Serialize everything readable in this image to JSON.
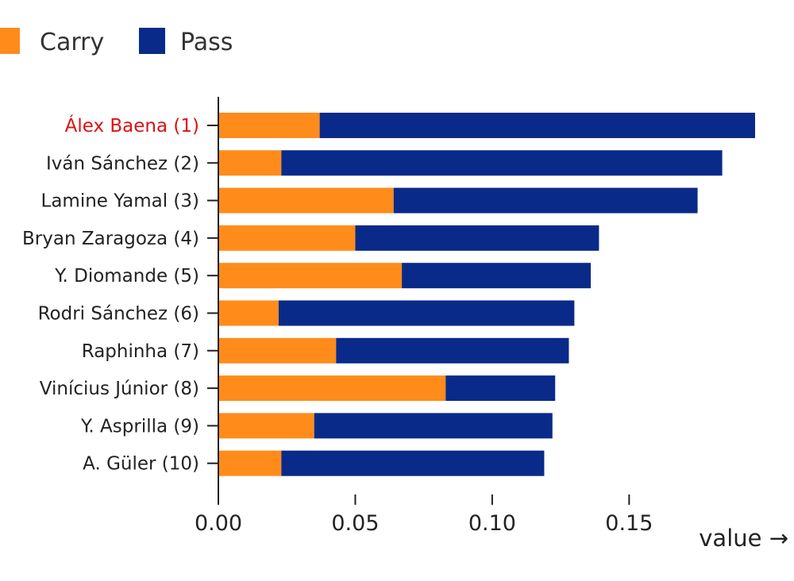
{
  "chart_data": {
    "type": "bar",
    "orientation": "horizontal",
    "stacked": true,
    "categories": [
      "Álex Baena (1)",
      "Iván Sánchez (2)",
      "Lamine Yamal (3)",
      "Bryan Zaragoza (4)",
      "Y. Diomande (5)",
      "Rodri Sánchez (6)",
      "Raphinha (7)",
      "Vinícius Júnior (8)",
      "Y. Asprilla (9)",
      "A. Güler (10)"
    ],
    "highlight_category": "Álex Baena (1)",
    "series": [
      {
        "name": "Carry",
        "color": "#ff8c1a",
        "values": [
          0.037,
          0.023,
          0.064,
          0.05,
          0.067,
          0.022,
          0.043,
          0.083,
          0.035,
          0.023
        ]
      },
      {
        "name": "Pass",
        "color": "#0a2a8a",
        "values": [
          0.159,
          0.161,
          0.111,
          0.089,
          0.069,
          0.108,
          0.085,
          0.04,
          0.087,
          0.096
        ]
      }
    ],
    "xlabel": "value →",
    "ylabel": "",
    "xlim": [
      0,
      0.196
    ],
    "xticks": [
      "0.00",
      "0.05",
      "0.10",
      "0.15"
    ],
    "xtick_values": [
      0,
      0.05,
      0.1,
      0.15
    ],
    "grid": false,
    "legend_position": "top-left",
    "highlight_color": "#dd1111",
    "text_color": "#222222"
  }
}
